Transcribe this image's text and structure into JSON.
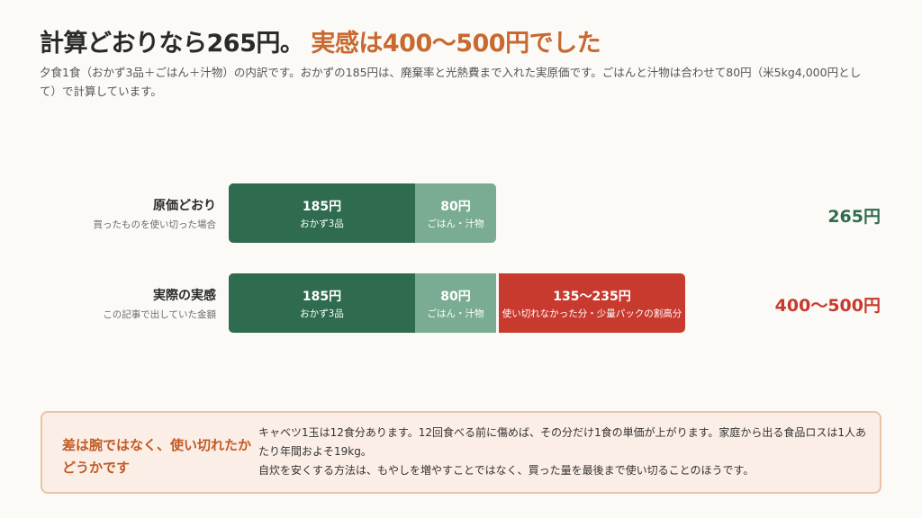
{
  "header": {
    "title_main": "計算どおりなら265円。",
    "title_accent": "実感は400〜500円でした",
    "subtitle": "夕食1食（おかず3品＋ごはん＋汁物）の内訳です。おかずの185円は、廃棄率と光熱費まで入れた実原価です。ごはんと汁物は合わせて80円（米5kg4,000円として）で計算しています。"
  },
  "chart_data": {
    "type": "bar",
    "orientation": "horizontal",
    "stacked": true,
    "unit": "円",
    "rows": [
      {
        "label": "原価どおり",
        "sublabel": "買ったものを使い切った場合",
        "total_label": "265円",
        "segments": [
          {
            "name": "おかず3品",
            "value": 185,
            "value_label": "185円",
            "color": "#2e6b4f"
          },
          {
            "name": "ごはん・汁物",
            "value": 80,
            "value_label": "80円",
            "color": "#7aac93"
          }
        ]
      },
      {
        "label": "実際の実感",
        "sublabel": "この記事で出していた金額",
        "total_label": "400〜500円",
        "segments": [
          {
            "name": "おかず3品",
            "value": 185,
            "value_label": "185円",
            "color": "#2e6b4f"
          },
          {
            "name": "ごはん・汁物",
            "value": 80,
            "value_label": "80円",
            "color": "#7aac93"
          },
          {
            "name": "使い切れなかった分・少量パックの割高分",
            "value": [
              135,
              235
            ],
            "value_label": "135〜235円",
            "color": "#c8392e"
          }
        ]
      }
    ]
  },
  "note": {
    "heading": "差は腕ではなく、使い切れたかどうかです",
    "line1": "キャベツ1玉は12食分あります。12回食べる前に傷めば、その分だけ1食の単価が上がります。家庭から出る食品ロスは1人あたり年間およそ19kg。",
    "line2": "自炊を安くする方法は、もやしを増やすことではなく、買った量を最後まで使い切ることのほうです。"
  },
  "colors": {
    "okazu": "#2e6b4f",
    "rice": "#7aac93",
    "waste": "#c8392e",
    "accent": "#c8692f"
  }
}
